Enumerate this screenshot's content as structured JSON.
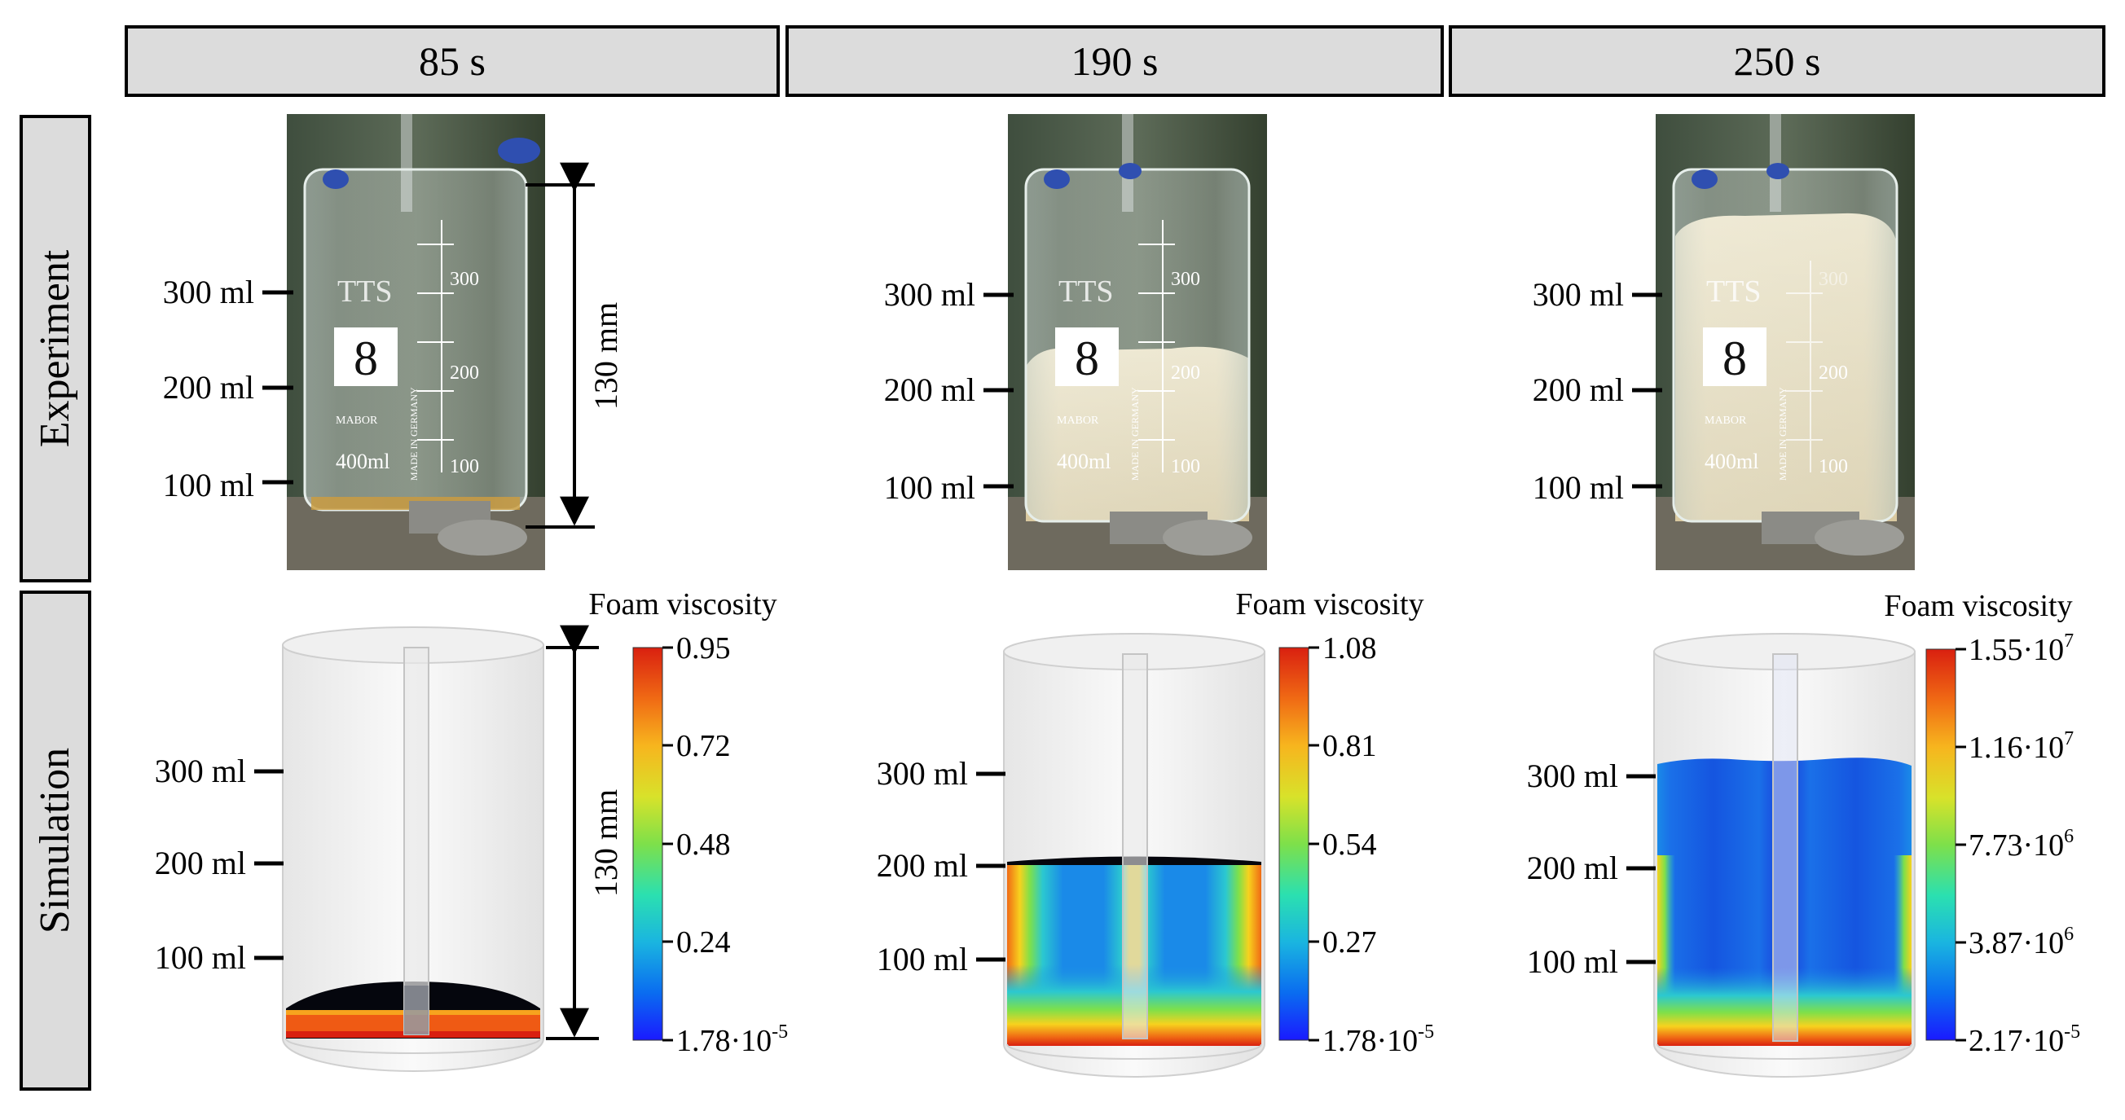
{
  "figure": {
    "columns": [
      {
        "header": "85 s",
        "experiment": {
          "beaker_label": "8",
          "beaker_marks": [
            "300",
            "200",
            "100"
          ],
          "beaker_capacity": "400ml",
          "beaker_brand": "MABOR",
          "beaker_logo": "TTS",
          "beaker_fine_print": "MADE IN GERMANY",
          "levels": [
            "300 ml",
            "200 ml",
            "100 ml"
          ],
          "dimension": "130 mm",
          "foam_level_fraction": 0.0
        },
        "simulation": {
          "levels": [
            "300 ml",
            "200 ml",
            "100 ml"
          ],
          "dimension": "130 mm",
          "colorbar": {
            "title": "Foam viscosity",
            "ticks": [
              "0.95",
              "0.72",
              "0.48",
              "0.24"
            ],
            "min_tick": {
              "base": "1.78·10",
              "exp": "-5"
            }
          }
        }
      },
      {
        "header": "190 s",
        "experiment": {
          "beaker_label": "8",
          "beaker_marks": [
            "300",
            "200",
            "100"
          ],
          "beaker_capacity": "400ml",
          "beaker_brand": "MABOR",
          "beaker_logo": "TTS",
          "beaker_fine_print": "MADE IN GERMANY",
          "levels": [
            "300 ml",
            "200 ml",
            "100 ml"
          ],
          "foam_level_fraction": 0.5
        },
        "simulation": {
          "levels": [
            "300 ml",
            "200 ml",
            "100 ml"
          ],
          "colorbar": {
            "title": "Foam viscosity",
            "ticks": [
              "1.08",
              "0.81",
              "0.54",
              "0.27"
            ],
            "min_tick": {
              "base": "1.78·10",
              "exp": "-5"
            }
          }
        }
      },
      {
        "header": "250 s",
        "experiment": {
          "beaker_label": "8",
          "beaker_marks": [
            "300",
            "200",
            "100"
          ],
          "beaker_capacity": "400ml",
          "beaker_brand": "MABOR",
          "beaker_logo": "TTS",
          "beaker_fine_print": "MADE IN GERMANY",
          "levels": [
            "300 ml",
            "200 ml",
            "100 ml"
          ],
          "foam_level_fraction": 0.9
        },
        "simulation": {
          "levels": [
            "300 ml",
            "200 ml",
            "100 ml"
          ],
          "colorbar": {
            "title": "Foam viscosity",
            "ticks": [
              {
                "base": "1.55·10",
                "exp": "7"
              },
              {
                "base": "1.16·10",
                "exp": "7"
              },
              {
                "base": "7.73·10",
                "exp": "6"
              },
              {
                "base": "3.87·10",
                "exp": "6"
              }
            ],
            "min_tick": {
              "base": "2.17·10",
              "exp": "-5"
            }
          }
        }
      }
    ],
    "rows": [
      "Experiment",
      "Simulation"
    ],
    "colors": {
      "header_fill": "#dcdcdc",
      "foam": "#e9dcbc",
      "colormap": [
        "#1a1aff",
        "#0a6cf0",
        "#1ab5e0",
        "#2be0b0",
        "#7ee04a",
        "#d8e22a",
        "#f7b51e",
        "#f06a14",
        "#d92010"
      ]
    }
  }
}
